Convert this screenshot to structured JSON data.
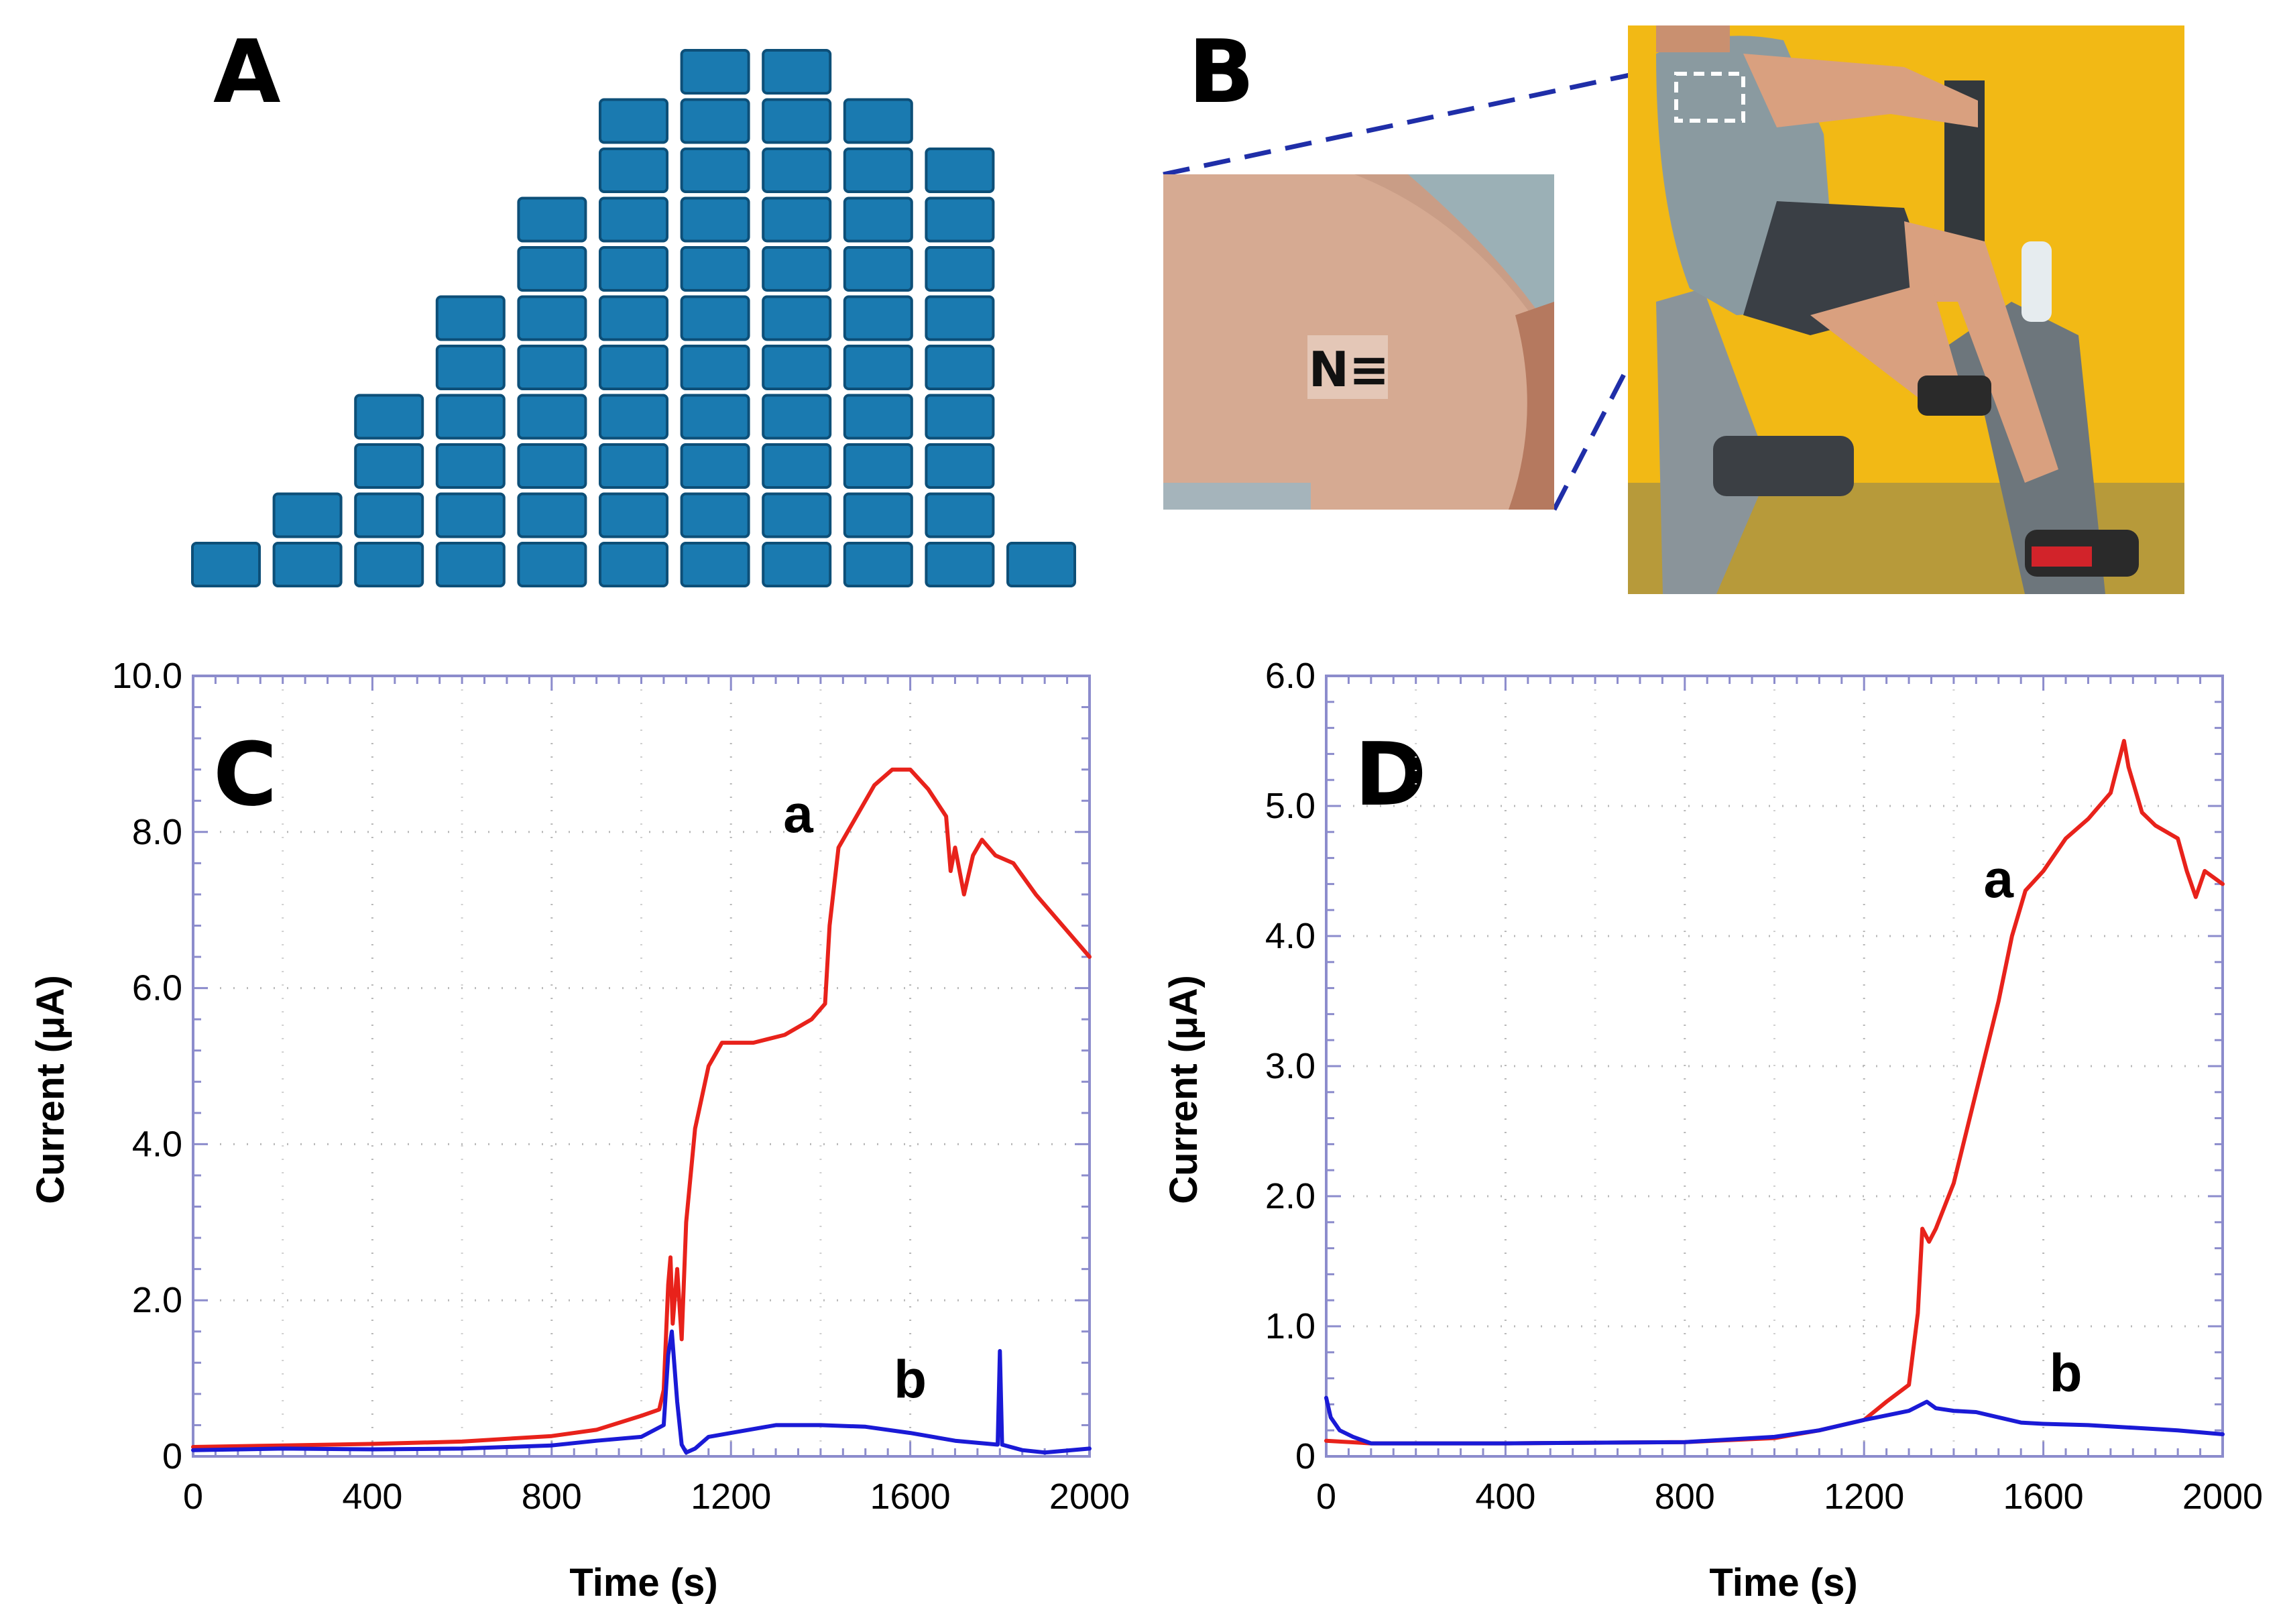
{
  "panel_a": {
    "label": "A",
    "block_color": "#1a7ab0",
    "block_stroke": "#0d4f78",
    "stack_heights": [
      1,
      2,
      4,
      6,
      8,
      10,
      11,
      11,
      10,
      9,
      1
    ]
  },
  "panel_b": {
    "label": "B",
    "patch_text": "N≡",
    "colors": {
      "wall": "#f2b915",
      "shirt": "#8a9aa0",
      "shorts": "#3a3f45",
      "skin": "#d9a07f",
      "zoom_line": "#1f2ea8"
    }
  },
  "chart_data": [
    {
      "panel_label": "C",
      "type": "line",
      "title": "",
      "xlabel": "Time (s)",
      "ylabel": "Current (μA)",
      "xlim": [
        0,
        2000
      ],
      "ylim": [
        0,
        10
      ],
      "x_ticks": [
        "0",
        "400",
        "800",
        "1200",
        "1600",
        "2000"
      ],
      "y_ticks": [
        "0",
        "2.0",
        "4.0",
        "6.0",
        "8.0",
        "10.0"
      ],
      "grid": true,
      "annotations": [
        {
          "text": "a",
          "x": 1350,
          "y": 8.0
        },
        {
          "text": "b",
          "x": 1600,
          "y": 0.75
        }
      ],
      "series": [
        {
          "color": "#e8221b",
          "points": [
            [
              0,
              0.12
            ],
            [
              200,
              0.14
            ],
            [
              400,
              0.16
            ],
            [
              600,
              0.19
            ],
            [
              800,
              0.26
            ],
            [
              900,
              0.34
            ],
            [
              1000,
              0.52
            ],
            [
              1040,
              0.6
            ],
            [
              1050,
              0.85
            ],
            [
              1060,
              2.2
            ],
            [
              1065,
              2.55
            ],
            [
              1070,
              1.7
            ],
            [
              1080,
              2.4
            ],
            [
              1090,
              1.5
            ],
            [
              1100,
              3.0
            ],
            [
              1120,
              4.2
            ],
            [
              1150,
              5.0
            ],
            [
              1180,
              5.3
            ],
            [
              1250,
              5.3
            ],
            [
              1320,
              5.4
            ],
            [
              1380,
              5.6
            ],
            [
              1410,
              5.8
            ],
            [
              1420,
              6.8
            ],
            [
              1440,
              7.8
            ],
            [
              1480,
              8.2
            ],
            [
              1520,
              8.6
            ],
            [
              1560,
              8.8
            ],
            [
              1600,
              8.8
            ],
            [
              1640,
              8.55
            ],
            [
              1680,
              8.2
            ],
            [
              1690,
              7.5
            ],
            [
              1700,
              7.8
            ],
            [
              1720,
              7.2
            ],
            [
              1740,
              7.7
            ],
            [
              1760,
              7.9
            ],
            [
              1790,
              7.7
            ],
            [
              1830,
              7.6
            ],
            [
              1880,
              7.2
            ],
            [
              1940,
              6.8
            ],
            [
              2000,
              6.4
            ]
          ]
        },
        {
          "color": "#1a1ad6",
          "points": [
            [
              0,
              0.08
            ],
            [
              200,
              0.1
            ],
            [
              400,
              0.09
            ],
            [
              600,
              0.1
            ],
            [
              800,
              0.14
            ],
            [
              900,
              0.2
            ],
            [
              1000,
              0.25
            ],
            [
              1050,
              0.4
            ],
            [
              1060,
              1.3
            ],
            [
              1068,
              1.6
            ],
            [
              1080,
              0.7
            ],
            [
              1090,
              0.15
            ],
            [
              1100,
              0.05
            ],
            [
              1120,
              0.1
            ],
            [
              1150,
              0.25
            ],
            [
              1200,
              0.3
            ],
            [
              1300,
              0.4
            ],
            [
              1400,
              0.4
            ],
            [
              1500,
              0.38
            ],
            [
              1600,
              0.3
            ],
            [
              1700,
              0.2
            ],
            [
              1795,
              0.15
            ],
            [
              1800,
              1.35
            ],
            [
              1805,
              0.15
            ],
            [
              1850,
              0.08
            ],
            [
              1900,
              0.05
            ],
            [
              2000,
              0.1
            ]
          ]
        }
      ]
    },
    {
      "panel_label": "D",
      "type": "line",
      "title": "",
      "xlabel": "Time (s)",
      "ylabel": "Current (μA)",
      "xlim": [
        0,
        2000
      ],
      "ylim": [
        0,
        6
      ],
      "x_ticks": [
        "0",
        "400",
        "800",
        "1200",
        "1600",
        "2000"
      ],
      "y_ticks": [
        "0",
        "1.0",
        "2.0",
        "3.0",
        "4.0",
        "5.0",
        "6.0"
      ],
      "grid": true,
      "annotations": [
        {
          "text": "a",
          "x": 1500,
          "y": 4.3
        },
        {
          "text": "b",
          "x": 1650,
          "y": 0.5
        }
      ],
      "series": [
        {
          "color": "#e8221b",
          "points": [
            [
              0,
              0.12
            ],
            [
              100,
              0.1
            ],
            [
              400,
              0.1
            ],
            [
              800,
              0.11
            ],
            [
              1000,
              0.14
            ],
            [
              1100,
              0.2
            ],
            [
              1200,
              0.28
            ],
            [
              1250,
              0.42
            ],
            [
              1300,
              0.55
            ],
            [
              1320,
              1.1
            ],
            [
              1330,
              1.75
            ],
            [
              1345,
              1.65
            ],
            [
              1360,
              1.75
            ],
            [
              1400,
              2.1
            ],
            [
              1450,
              2.8
            ],
            [
              1500,
              3.5
            ],
            [
              1530,
              4.0
            ],
            [
              1560,
              4.35
            ],
            [
              1600,
              4.5
            ],
            [
              1650,
              4.75
            ],
            [
              1700,
              4.9
            ],
            [
              1750,
              5.1
            ],
            [
              1780,
              5.5
            ],
            [
              1790,
              5.3
            ],
            [
              1820,
              4.95
            ],
            [
              1850,
              4.85
            ],
            [
              1900,
              4.75
            ],
            [
              1920,
              4.5
            ],
            [
              1940,
              4.3
            ],
            [
              1960,
              4.5
            ],
            [
              1980,
              4.45
            ],
            [
              2000,
              4.4
            ]
          ]
        },
        {
          "color": "#1a1ad6",
          "points": [
            [
              0,
              0.45
            ],
            [
              10,
              0.3
            ],
            [
              30,
              0.2
            ],
            [
              60,
              0.15
            ],
            [
              100,
              0.1
            ],
            [
              400,
              0.1
            ],
            [
              800,
              0.11
            ],
            [
              1000,
              0.15
            ],
            [
              1100,
              0.2
            ],
            [
              1200,
              0.28
            ],
            [
              1300,
              0.35
            ],
            [
              1340,
              0.42
            ],
            [
              1360,
              0.37
            ],
            [
              1400,
              0.35
            ],
            [
              1450,
              0.34
            ],
            [
              1500,
              0.3
            ],
            [
              1550,
              0.26
            ],
            [
              1600,
              0.25
            ],
            [
              1700,
              0.24
            ],
            [
              1800,
              0.22
            ],
            [
              1900,
              0.2
            ],
            [
              2000,
              0.17
            ]
          ]
        }
      ]
    }
  ]
}
